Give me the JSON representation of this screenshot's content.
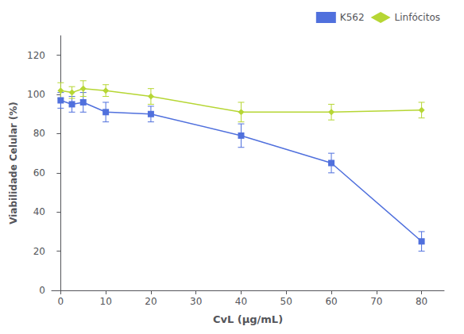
{
  "chart_data": {
    "type": "line",
    "xlabel": "CvL (μg/mL)",
    "ylabel": "Viabilidade Celular (%)",
    "x": [
      0,
      2.5,
      5,
      10,
      20,
      40,
      60,
      80
    ],
    "series": [
      {
        "name": "K562",
        "values": [
          97,
          95,
          96,
          91,
          90,
          79,
          65,
          25
        ],
        "errors": [
          4,
          4,
          5,
          5,
          4,
          6,
          5,
          5
        ],
        "marker": "square",
        "line_style": "solid"
      },
      {
        "name": "Linfócitos",
        "values": [
          102,
          101,
          103,
          102,
          99,
          91,
          91,
          92
        ],
        "errors": [
          4,
          3,
          4,
          3,
          4,
          5,
          4,
          4
        ],
        "marker": "diamond",
        "line_style": "solid"
      }
    ],
    "xlim": [
      -2,
      85
    ],
    "ylim": [
      0,
      130
    ],
    "xticks": [
      0,
      10,
      20,
      30,
      40,
      50,
      60,
      70,
      80
    ],
    "yticks": [
      0,
      20,
      40,
      60,
      80,
      100,
      120
    ],
    "grid": false,
    "legend": "upper right"
  }
}
